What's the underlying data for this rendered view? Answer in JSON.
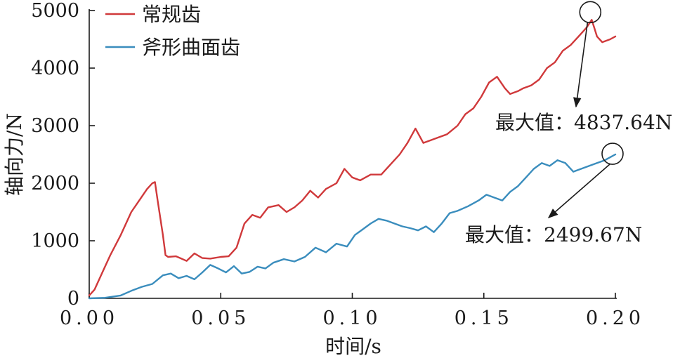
{
  "chart_data": {
    "type": "line",
    "xlabel": "时间/s",
    "ylabel": "轴向力/N",
    "xlim": [
      0,
      0.2
    ],
    "ylim": [
      0,
      5000
    ],
    "x_ticks": [
      0,
      0.05,
      0.1,
      0.15,
      0.2
    ],
    "x_tick_labels": [
      "0.00",
      "0.05",
      "0.10",
      "0.15",
      "0.20"
    ],
    "y_ticks": [
      0,
      1000,
      2000,
      3000,
      4000,
      5000
    ],
    "y_tick_labels": [
      "0",
      "1000",
      "2000",
      "3000",
      "4000",
      "5000"
    ],
    "legend": "top-left",
    "grid": false,
    "series": [
      {
        "name": "常规齿",
        "color": "#d0393b",
        "x": [
          0,
          0.002,
          0.005,
          0.008,
          0.012,
          0.016,
          0.019,
          0.022,
          0.024,
          0.025,
          0.026,
          0.028,
          0.029,
          0.03,
          0.033,
          0.037,
          0.04,
          0.043,
          0.046,
          0.05,
          0.053,
          0.056,
          0.059,
          0.062,
          0.065,
          0.068,
          0.072,
          0.075,
          0.078,
          0.081,
          0.084,
          0.087,
          0.09,
          0.094,
          0.097,
          0.1,
          0.103,
          0.107,
          0.111,
          0.114,
          0.118,
          0.121,
          0.124,
          0.127,
          0.13,
          0.133,
          0.136,
          0.14,
          0.143,
          0.146,
          0.149,
          0.152,
          0.155,
          0.158,
          0.16,
          0.163,
          0.165,
          0.168,
          0.171,
          0.174,
          0.177,
          0.18,
          0.183,
          0.186,
          0.189,
          0.191,
          0.192,
          0.193,
          0.195,
          0.198,
          0.2
        ],
        "values": [
          50,
          150,
          450,
          750,
          1100,
          1500,
          1700,
          1900,
          2000,
          2020,
          1700,
          1100,
          750,
          720,
          730,
          650,
          780,
          700,
          690,
          720,
          730,
          880,
          1300,
          1450,
          1400,
          1580,
          1620,
          1500,
          1580,
          1700,
          1870,
          1750,
          1900,
          2000,
          2250,
          2100,
          2050,
          2150,
          2150,
          2300,
          2500,
          2700,
          2950,
          2700,
          2750,
          2800,
          2850,
          3000,
          3200,
          3300,
          3500,
          3750,
          3850,
          3650,
          3550,
          3600,
          3650,
          3700,
          3800,
          4000,
          4100,
          4300,
          4400,
          4550,
          4700,
          4837.64,
          4700,
          4550,
          4450,
          4500,
          4550
        ]
      },
      {
        "name": "斧形曲面齿",
        "color": "#3a8dbd",
        "x": [
          0,
          0.006,
          0.012,
          0.016,
          0.02,
          0.024,
          0.028,
          0.031,
          0.034,
          0.037,
          0.04,
          0.043,
          0.046,
          0.049,
          0.052,
          0.055,
          0.058,
          0.061,
          0.064,
          0.067,
          0.07,
          0.074,
          0.078,
          0.082,
          0.086,
          0.09,
          0.094,
          0.098,
          0.101,
          0.104,
          0.107,
          0.11,
          0.113,
          0.116,
          0.119,
          0.122,
          0.125,
          0.128,
          0.131,
          0.134,
          0.137,
          0.14,
          0.144,
          0.148,
          0.151,
          0.154,
          0.157,
          0.16,
          0.163,
          0.166,
          0.169,
          0.172,
          0.175,
          0.178,
          0.181,
          0.184,
          0.187,
          0.19,
          0.193,
          0.196,
          0.198,
          0.2
        ],
        "values": [
          0,
          10,
          50,
          130,
          200,
          250,
          400,
          430,
          350,
          390,
          330,
          450,
          580,
          520,
          450,
          560,
          430,
          460,
          550,
          520,
          620,
          680,
          640,
          720,
          880,
          800,
          950,
          900,
          1100,
          1200,
          1300,
          1380,
          1350,
          1300,
          1250,
          1220,
          1180,
          1250,
          1150,
          1300,
          1480,
          1520,
          1600,
          1700,
          1800,
          1750,
          1700,
          1850,
          1950,
          2100,
          2250,
          2350,
          2300,
          2400,
          2350,
          2200,
          2250,
          2300,
          2350,
          2400,
          2450,
          2499.67
        ]
      }
    ],
    "annotations": [
      {
        "text": "最大值：4837.64N",
        "x": 0.191,
        "y": 4837.64,
        "series": "常规齿"
      },
      {
        "text": "最大值：2499.67N",
        "x": 0.2,
        "y": 2499.67,
        "series": "斧形曲面齿"
      }
    ]
  }
}
